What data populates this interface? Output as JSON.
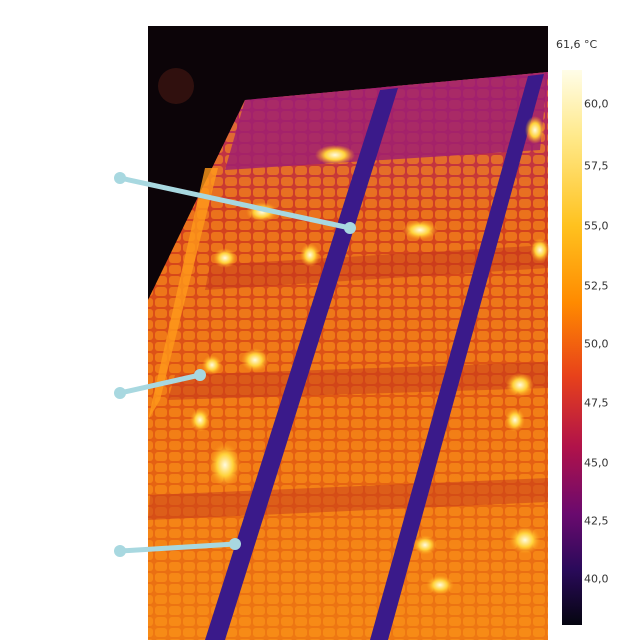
{
  "thermal_image": {
    "max_temperature_label": "61,6 °C",
    "scale_ticks": [
      "60,0",
      "57,5",
      "55,0",
      "52,5",
      "50,0",
      "47,5",
      "45,0",
      "42,5",
      "40,0"
    ],
    "colorbar_colors": [
      "#fffde8",
      "#ffe98a",
      "#ffc21f",
      "#ff8a00",
      "#e8421a",
      "#b0124a",
      "#6a0a6e",
      "#2a0a5a",
      "#050510"
    ],
    "annotation_line_color": "#a8d8e0",
    "callout_markers": 3
  }
}
